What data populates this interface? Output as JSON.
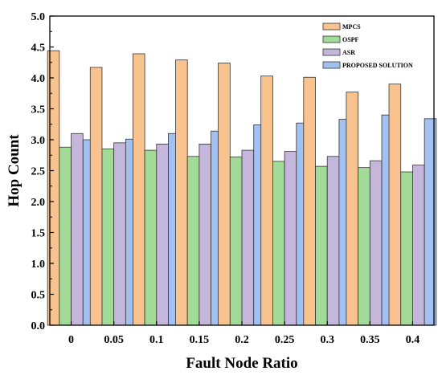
{
  "chart_data": {
    "type": "bar",
    "title": "",
    "xlabel": "Fault Node Ratio",
    "ylabel": "Hop Count",
    "categories": [
      "0",
      "0.05",
      "0.1",
      "0.15",
      "0.2",
      "0.25",
      "0.3",
      "0.35",
      "0.4"
    ],
    "yticks": [
      "0.0",
      "0.5",
      "1.0",
      "1.5",
      "2.0",
      "2.5",
      "3.0",
      "3.5",
      "4.0",
      "4.5",
      "5.0"
    ],
    "ylim": [
      0,
      5
    ],
    "grid": false,
    "legend_position": "top-right",
    "series": [
      {
        "name": "MPCS",
        "color": "#F9C38F",
        "values": [
          4.44,
          4.17,
          4.39,
          4.29,
          4.24,
          4.03,
          4.01,
          3.77,
          3.9
        ]
      },
      {
        "name": "OSPF",
        "color": "#A2DB98",
        "values": [
          2.88,
          2.85,
          2.83,
          2.73,
          2.72,
          2.65,
          2.57,
          2.55,
          2.48
        ]
      },
      {
        "name": "ASR",
        "color": "#C5B7DC",
        "values": [
          3.1,
          2.95,
          2.93,
          2.93,
          2.83,
          2.81,
          2.73,
          2.66,
          2.59
        ]
      },
      {
        "name": "PROPOSED SOLUTION",
        "color": "#A3C1F0",
        "values": [
          3.0,
          3.01,
          3.1,
          3.14,
          3.24,
          3.27,
          3.33,
          3.4,
          3.34
        ]
      }
    ]
  }
}
